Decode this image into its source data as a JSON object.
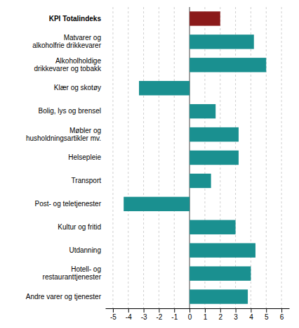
{
  "chart_data": {
    "type": "bar",
    "orientation": "horizontal",
    "categories": [
      "KPI Totalindeks",
      "Matvarer og\nalkoholfrie drikkevarer",
      "Alkoholholdige\ndrikkevarer og tobakk",
      "Klær og skotøy",
      "Bolig, lys og brensel",
      "Møbler og\nhusholdningsartikler mv.",
      "Helsepleie",
      "Transport",
      "Post- og teletjenester",
      "Kultur og fritid",
      "Utdanning",
      "Hotell- og\nrestauranttjenester",
      "Andre varer og tjenester"
    ],
    "values": [
      2.0,
      4.2,
      5.0,
      -3.3,
      1.7,
      3.2,
      3.2,
      1.4,
      -4.3,
      3.0,
      4.3,
      4.0,
      3.8
    ],
    "colors": [
      "#8B1A1A",
      "#1a9090",
      "#1a9090",
      "#1a9090",
      "#1a9090",
      "#1a9090",
      "#1a9090",
      "#1a9090",
      "#1a9090",
      "#1a9090",
      "#1a9090",
      "#1a9090",
      "#1a9090"
    ],
    "xlim": [
      -5.5,
      6.5
    ],
    "xticks": [
      -5,
      -4,
      -3,
      -2,
      -1,
      0,
      1,
      2,
      3,
      4,
      5,
      6
    ],
    "grid": true
  }
}
